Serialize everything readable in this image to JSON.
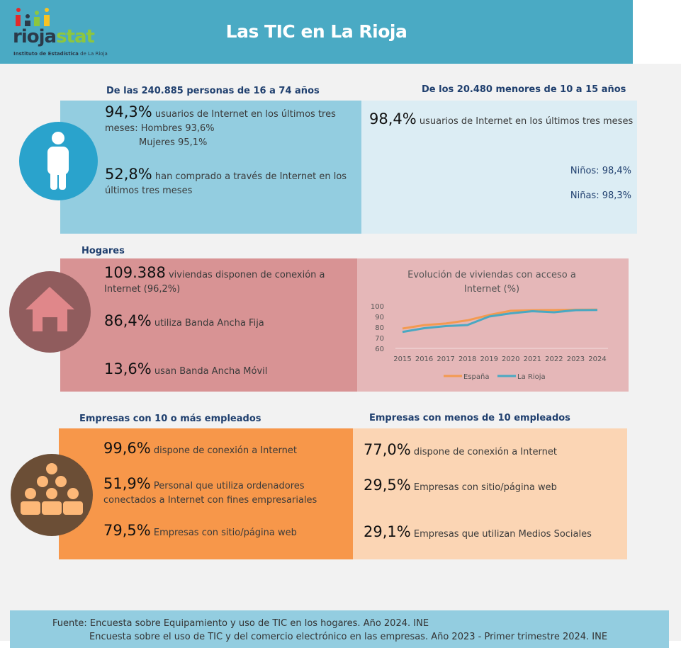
{
  "header": {
    "title": "Las TIC en La Rioja",
    "logo": {
      "name": "riojastat",
      "subtitle": "Instituto de Estadística de La Rioja"
    }
  },
  "personas": {
    "heading": "De las 240.885 personas de 16 a 74 años",
    "s1_value": "94,3%",
    "s1_text": "usuarios de Internet en los últimos tres",
    "s1_text2": "meses: Hombres 93,6%",
    "s1_text3": "Mujeres 95,1%",
    "s2_value": "52,8%",
    "s2_text": "han comprado a través de Internet en los",
    "s2_text2": "últimos tres meses"
  },
  "menores": {
    "heading": "De los 20.480 menores de 10 a 15 años",
    "value": "98,4%",
    "text": "usuarios de Internet en los últimos tres meses",
    "ninos": "Niños: 98,4%",
    "ninas": "Niñas: 98,3%"
  },
  "hogares": {
    "heading": "Hogares",
    "s1_value": "109.388",
    "s1_text": "viviendas disponen de conexión a",
    "s1_text2": "Internet (96,2%)",
    "s2_value": "86,4%",
    "s2_text": "utiliza Banda Ancha Fija",
    "s3_value": "13,6%",
    "s3_text": "usan Banda Ancha Móvil"
  },
  "chart_data": {
    "type": "line",
    "title": "Evolución de viviendas con acceso a Internet (%)",
    "title_l1": "Evolución de viviendas con acceso a",
    "title_l2": "Internet (%)",
    "categories": [
      "2015",
      "2016",
      "2017",
      "2018",
      "2019",
      "2020",
      "2021",
      "2022",
      "2023",
      "2024"
    ],
    "yticks": [
      "100",
      "90",
      "80",
      "70",
      "60"
    ],
    "ylim": [
      60,
      100
    ],
    "legend": "bottom",
    "series": [
      {
        "name": "España",
        "color": "#f39a50",
        "values": [
          78.7,
          81.9,
          83.4,
          86.4,
          91.4,
          95.4,
          95.9,
          96.1,
          96.4,
          96.5
        ]
      },
      {
        "name": "La Rioja",
        "color": "#4aa8c2",
        "values": [
          75.5,
          79.0,
          81.0,
          82.0,
          90.0,
          93.0,
          95.0,
          94.0,
          96.0,
          96.2
        ]
      }
    ]
  },
  "empresas_grandes": {
    "heading": "Empresas con 10 o más empleados",
    "s1_value": "99,6%",
    "s1_text": "dispone de conexión a Internet",
    "s2_value": "51,9%",
    "s2_text": "Personal que utiliza ordenadores",
    "s2_text2": "conectados a Internet con fines empresariales",
    "s3_value": "79,5%",
    "s3_text": "Empresas con sitio/página web"
  },
  "empresas_peq": {
    "heading": "Empresas con menos de 10 empleados",
    "s1_value": "77,0%",
    "s1_text": "dispone de conexión a Internet",
    "s2_value": "29,5%",
    "s2_text": "Empresas con sitio/página web",
    "s3_value": "29,1%",
    "s3_text": "Empresas que utilizan Medios Sociales"
  },
  "footer": {
    "line1": "Fuente: Encuesta sobre Equipamiento y uso de TIC en los hogares. Año 2024. INE",
    "line2": "Encuesta sobre el uso de TIC y del comercio electrónico en las empresas. Año 2023 - Primer trimestre 2024. INE"
  }
}
